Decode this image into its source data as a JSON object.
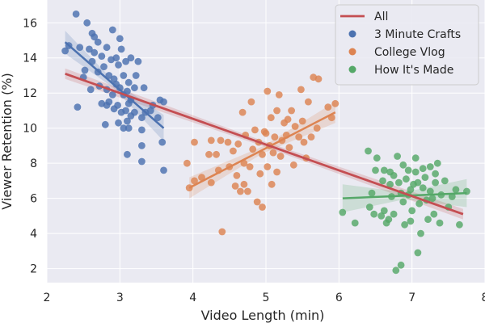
{
  "chart_data": {
    "type": "scatter",
    "xlabel": "Video Length (min)",
    "ylabel": "Viewer Retention (%)",
    "xlim": [
      2.0,
      8.0
    ],
    "ylim": [
      1.2,
      17.3
    ],
    "x_ticks": [
      "2",
      "3",
      "4",
      "5",
      "6",
      "7",
      "8"
    ],
    "y_ticks": [
      "2",
      "4",
      "6",
      "8",
      "10",
      "12",
      "14",
      "16"
    ],
    "grid": true,
    "legend_position": "top-right",
    "series": [
      {
        "name": "3 Minute Crafts",
        "color": "#4C72B0",
        "fit": [
          [
            2.25,
            14.9
          ],
          [
            3.6,
            10.0
          ]
        ],
        "points": [
          [
            2.4,
            16.5
          ],
          [
            2.55,
            16.0
          ],
          [
            2.62,
            15.4
          ],
          [
            2.65,
            15.2
          ],
          [
            2.9,
            15.6
          ],
          [
            3.0,
            15.1
          ],
          [
            2.25,
            14.4
          ],
          [
            2.3,
            14.7
          ],
          [
            2.45,
            14.6
          ],
          [
            2.58,
            14.5
          ],
          [
            2.65,
            14.3
          ],
          [
            2.7,
            14.9
          ],
          [
            2.75,
            14.1
          ],
          [
            2.82,
            14.6
          ],
          [
            2.88,
            13.9
          ],
          [
            2.95,
            14.0
          ],
          [
            3.02,
            14.5
          ],
          [
            3.08,
            13.8
          ],
          [
            3.15,
            14.0
          ],
          [
            3.25,
            13.8
          ],
          [
            2.52,
            13.3
          ],
          [
            2.62,
            13.8
          ],
          [
            2.7,
            13.2
          ],
          [
            2.78,
            13.5
          ],
          [
            2.85,
            13.0
          ],
          [
            2.92,
            12.8
          ],
          [
            2.98,
            13.6
          ],
          [
            3.05,
            13.0
          ],
          [
            3.12,
            12.6
          ],
          [
            3.22,
            13.0
          ],
          [
            2.5,
            12.9
          ],
          [
            2.6,
            12.2
          ],
          [
            2.72,
            12.4
          ],
          [
            2.82,
            12.2
          ],
          [
            2.9,
            11.9
          ],
          [
            2.95,
            12.5
          ],
          [
            3.0,
            12.3
          ],
          [
            3.05,
            11.9
          ],
          [
            3.1,
            12.1
          ],
          [
            3.15,
            11.6
          ],
          [
            3.2,
            12.3
          ],
          [
            3.33,
            12.3
          ],
          [
            2.42,
            11.2
          ],
          [
            2.75,
            11.4
          ],
          [
            2.82,
            11.3
          ],
          [
            2.85,
            11.5
          ],
          [
            2.92,
            11.1
          ],
          [
            2.97,
            11.3
          ],
          [
            3.02,
            10.9
          ],
          [
            3.08,
            11.0
          ],
          [
            3.12,
            11.4
          ],
          [
            3.15,
            10.7
          ],
          [
            3.2,
            10.9
          ],
          [
            3.3,
            10.6
          ],
          [
            3.35,
            10.9
          ],
          [
            3.42,
            11.0
          ],
          [
            3.45,
            11.3
          ],
          [
            3.52,
            10.6
          ],
          [
            3.55,
            11.6
          ],
          [
            3.6,
            11.5
          ],
          [
            2.8,
            10.2
          ],
          [
            2.98,
            10.3
          ],
          [
            3.05,
            10.0
          ],
          [
            3.1,
            10.4
          ],
          [
            3.12,
            10.0
          ],
          [
            3.3,
            9.9
          ],
          [
            3.1,
            8.5
          ],
          [
            3.3,
            9.0
          ],
          [
            3.3,
            8.1
          ],
          [
            3.58,
            9.2
          ],
          [
            3.6,
            7.6
          ]
        ]
      },
      {
        "name": "College Vlog",
        "color": "#DD8452",
        "fit": [
          [
            3.95,
            6.6
          ],
          [
            5.95,
            10.9
          ]
        ],
        "points": [
          [
            3.92,
            8.0
          ],
          [
            3.95,
            6.6
          ],
          [
            4.02,
            7.0
          ],
          [
            4.02,
            9.2
          ],
          [
            4.12,
            7.2
          ],
          [
            4.22,
            8.5
          ],
          [
            4.25,
            9.3
          ],
          [
            4.25,
            6.9
          ],
          [
            4.32,
            8.5
          ],
          [
            4.35,
            7.6
          ],
          [
            4.38,
            9.3
          ],
          [
            4.4,
            4.1
          ],
          [
            4.48,
            9.2
          ],
          [
            4.5,
            7.8
          ],
          [
            4.55,
            8.7
          ],
          [
            4.58,
            6.7
          ],
          [
            4.6,
            7.3
          ],
          [
            4.62,
            9.1
          ],
          [
            4.65,
            6.4
          ],
          [
            4.68,
            10.9
          ],
          [
            4.7,
            6.8
          ],
          [
            4.7,
            8.0
          ],
          [
            4.72,
            9.6
          ],
          [
            4.75,
            6.4
          ],
          [
            4.78,
            7.8
          ],
          [
            4.8,
            11.5
          ],
          [
            4.82,
            8.8
          ],
          [
            4.85,
            9.9
          ],
          [
            4.88,
            5.8
          ],
          [
            4.9,
            9.2
          ],
          [
            4.92,
            7.4
          ],
          [
            4.95,
            5.5
          ],
          [
            4.95,
            8.5
          ],
          [
            4.98,
            9.8
          ],
          [
            5.0,
            9.7
          ],
          [
            5.02,
            12.1
          ],
          [
            5.02,
            7.8
          ],
          [
            5.05,
            9.0
          ],
          [
            5.07,
            10.6
          ],
          [
            5.08,
            6.8
          ],
          [
            5.1,
            8.6
          ],
          [
            5.12,
            9.5
          ],
          [
            5.15,
            7.5
          ],
          [
            5.15,
            11.0
          ],
          [
            5.18,
            11.9
          ],
          [
            5.2,
            8.4
          ],
          [
            5.22,
            9.3
          ],
          [
            5.25,
            10.3
          ],
          [
            5.28,
            9.6
          ],
          [
            5.3,
            10.5
          ],
          [
            5.32,
            8.9
          ],
          [
            5.35,
            11.0
          ],
          [
            5.38,
            7.9
          ],
          [
            5.4,
            10.1
          ],
          [
            5.45,
            9.5
          ],
          [
            5.48,
            12.2
          ],
          [
            5.5,
            10.4
          ],
          [
            5.52,
            9.2
          ],
          [
            5.55,
            8.3
          ],
          [
            5.58,
            11.5
          ],
          [
            5.62,
            9.5
          ],
          [
            5.65,
            12.9
          ],
          [
            5.7,
            10.0
          ],
          [
            5.72,
            12.8
          ],
          [
            5.85,
            11.2
          ],
          [
            5.9,
            10.6
          ],
          [
            5.95,
            11.4
          ]
        ]
      },
      {
        "name": "How It's Made",
        "color": "#55A868",
        "fit": [
          [
            6.05,
            6.0
          ],
          [
            7.75,
            6.3
          ]
        ],
        "points": [
          [
            6.05,
            5.2
          ],
          [
            6.22,
            4.6
          ],
          [
            6.4,
            8.7
          ],
          [
            6.42,
            5.5
          ],
          [
            6.45,
            6.3
          ],
          [
            6.48,
            5.1
          ],
          [
            6.5,
            7.6
          ],
          [
            6.52,
            8.3
          ],
          [
            6.58,
            5.0
          ],
          [
            6.6,
            7.0
          ],
          [
            6.62,
            5.3
          ],
          [
            6.65,
            4.6
          ],
          [
            6.68,
            4.8
          ],
          [
            6.7,
            7.5
          ],
          [
            6.72,
            6.1
          ],
          [
            6.75,
            5.1
          ],
          [
            6.78,
            1.9
          ],
          [
            6.8,
            8.4
          ],
          [
            6.82,
            6.9
          ],
          [
            6.85,
            2.2
          ],
          [
            6.88,
            5.8
          ],
          [
            6.9,
            4.5
          ],
          [
            6.92,
            7.1
          ],
          [
            6.95,
            6.2
          ],
          [
            6.98,
            4.7
          ],
          [
            7.0,
            5.3
          ],
          [
            7.02,
            6.8
          ],
          [
            7.05,
            8.3
          ],
          [
            7.08,
            2.9
          ],
          [
            7.1,
            5.7
          ],
          [
            7.12,
            4.0
          ],
          [
            7.15,
            6.6
          ],
          [
            7.18,
            7.2
          ],
          [
            7.2,
            5.9
          ],
          [
            7.22,
            4.8
          ],
          [
            7.25,
            7.8
          ],
          [
            7.28,
            6.0
          ],
          [
            7.3,
            5.1
          ],
          [
            7.32,
            6.9
          ],
          [
            7.35,
            8.0
          ],
          [
            7.38,
            4.6
          ],
          [
            7.4,
            6.2
          ],
          [
            7.45,
            7.0
          ],
          [
            7.5,
            5.5
          ],
          [
            7.55,
            6.1
          ],
          [
            7.6,
            6.5
          ],
          [
            7.65,
            4.5
          ],
          [
            7.75,
            6.4
          ],
          [
            6.88,
            7.9
          ],
          [
            6.75,
            7.3
          ],
          [
            6.95,
            7.6
          ],
          [
            7.05,
            7.5
          ],
          [
            7.15,
            7.7
          ],
          [
            6.85,
            6.3
          ],
          [
            6.98,
            6.5
          ],
          [
            7.08,
            6.9
          ],
          [
            6.7,
            6.8
          ],
          [
            6.62,
            7.6
          ],
          [
            7.32,
            7.4
          ],
          [
            7.25,
            6.4
          ]
        ]
      }
    ],
    "overall_fit": {
      "name": "All",
      "color": "#C44E52",
      "line": [
        [
          2.25,
          13.1
        ],
        [
          7.7,
          5.1
        ]
      ]
    }
  }
}
